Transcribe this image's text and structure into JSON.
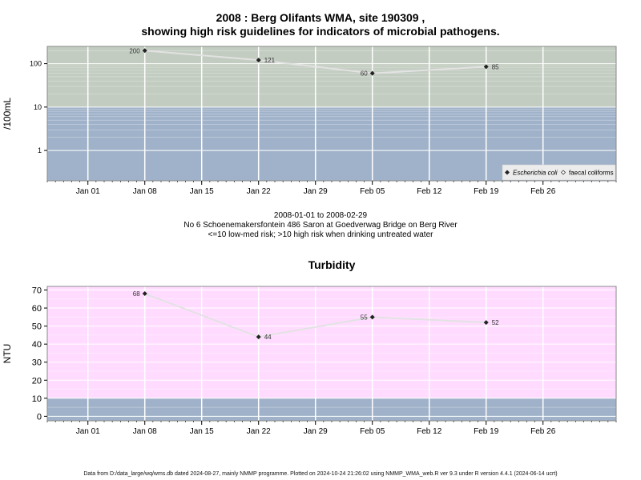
{
  "titles": {
    "line1": "2008 : Berg Olifants WMA, site 190309 ,",
    "line2": "showing high risk guidelines for indicators of microbial pathogens."
  },
  "info": {
    "date_range": "2008-01-01 to 2008-02-29",
    "site": "No 6 Schoenemakersfontein 486 Saron at Goedverwag Bridge on Berg River",
    "risk_note": "<=10 low-med risk; >10 high risk when drinking untreated water"
  },
  "footer": "Data from D:/data_large/wq/wms.db dated 2024-08-27, mainly NMMP programme. Plotted on 2024-10-24 21:26:02 using NMMP_WMA_web.R ver 9.3 under R version 4.4.1 (2024-06-14 ucrt)",
  "colors": {
    "high_risk_band": "#c2ccc0",
    "low_risk_band": "#a0b2c9",
    "turbidity_band": "#ffdcff",
    "line": "#dddddd",
    "point": "#222222"
  },
  "chart_data": [
    {
      "type": "line",
      "title": "",
      "ylabel": "/100mL",
      "xlabel": "",
      "y_scale": "log",
      "ylim": [
        0.2,
        250
      ],
      "y_ticks": [
        1,
        10,
        100
      ],
      "y_tick_labels": [
        "1",
        "10",
        "100"
      ],
      "xlim": [
        "2007-12-27",
        "2008-03-06"
      ],
      "x_ticks": [
        "2008-01-01",
        "2008-01-08",
        "2008-01-15",
        "2008-01-22",
        "2008-01-29",
        "2008-02-05",
        "2008-02-12",
        "2008-02-19",
        "2008-02-26"
      ],
      "x_tick_labels": [
        "Jan 01",
        "Jan 08",
        "Jan 15",
        "Jan 22",
        "Jan 29",
        "Feb 05",
        "Feb 12",
        "Feb 19",
        "Feb 26"
      ],
      "bands": [
        {
          "from": 0.2,
          "to": 10,
          "color": "#a0b2c9"
        },
        {
          "from": 10,
          "to": 250,
          "color": "#c2ccc0"
        }
      ],
      "series": [
        {
          "name": "Escherichia coli",
          "x": [
            "2008-01-08",
            "2008-01-22",
            "2008-02-05",
            "2008-02-19"
          ],
          "values": [
            200,
            121,
            60,
            85
          ],
          "labels": [
            "200",
            "121",
            "60",
            "85"
          ]
        }
      ],
      "legend": {
        "placement": "bottom-right",
        "entries": [
          {
            "label": "Escherichia coli",
            "marker": "filled-diamond",
            "italic": true
          },
          {
            "label": "faecal coliforms",
            "marker": "open-diamond",
            "italic": false
          }
        ]
      },
      "grid": true
    },
    {
      "type": "line",
      "title": "Turbidity",
      "ylabel": "NTU",
      "xlabel": "",
      "y_scale": "linear",
      "ylim": [
        -2.5,
        72
      ],
      "y_ticks": [
        0,
        10,
        20,
        30,
        40,
        50,
        60,
        70
      ],
      "y_tick_labels": [
        "0",
        "10",
        "20",
        "30",
        "40",
        "50",
        "60",
        "70"
      ],
      "xlim": [
        "2007-12-27",
        "2008-03-06"
      ],
      "x_ticks": [
        "2008-01-01",
        "2008-01-08",
        "2008-01-15",
        "2008-01-22",
        "2008-01-29",
        "2008-02-05",
        "2008-02-12",
        "2008-02-19",
        "2008-02-26"
      ],
      "x_tick_labels": [
        "Jan 01",
        "Jan 08",
        "Jan 15",
        "Jan 22",
        "Jan 29",
        "Feb 05",
        "Feb 12",
        "Feb 19",
        "Feb 26"
      ],
      "bands": [
        {
          "from": -2.5,
          "to": 10,
          "color": "#a0b2c9"
        },
        {
          "from": 10,
          "to": 72,
          "color": "#ffdcff"
        }
      ],
      "series": [
        {
          "name": "",
          "x": [
            "2008-01-08",
            "2008-01-22",
            "2008-02-05",
            "2008-02-19"
          ],
          "values": [
            68,
            44,
            55,
            52
          ],
          "labels": [
            "68",
            "44",
            "55",
            "52"
          ]
        }
      ],
      "grid": true
    }
  ]
}
